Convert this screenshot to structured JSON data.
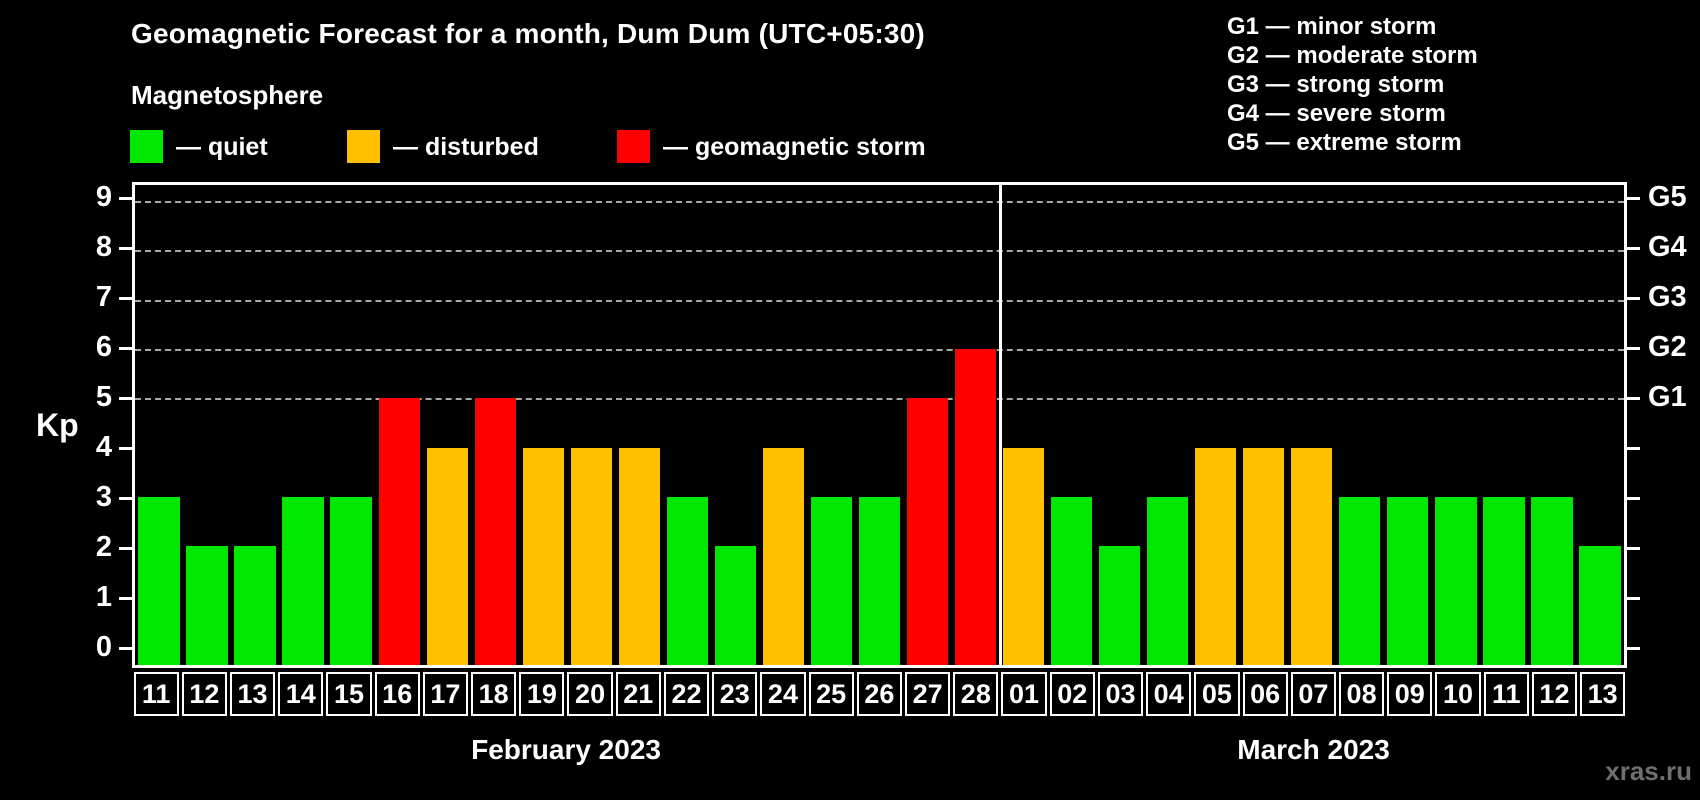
{
  "title": "Geomagnetic Forecast for a month, Dum Dum (UTC+05:30)",
  "subtitle": "Magnetosphere",
  "legend": {
    "items": [
      {
        "key": "quiet",
        "label": "— quiet"
      },
      {
        "key": "disturbed",
        "label": "— disturbed"
      },
      {
        "key": "storm",
        "label": "— geomagnetic storm"
      }
    ]
  },
  "storm_legend": {
    "items": [
      "G1 — minor storm",
      "G2 — moderate storm",
      "G3 — strong storm",
      "G4 — severe storm",
      "G5 — extreme storm"
    ]
  },
  "colors": {
    "quiet": "#00e800",
    "disturbed": "#ffc000",
    "storm": "#ff0000",
    "grid": "#a9a9a9",
    "axis": "#ffffff",
    "background": "#000000",
    "watermark": "#6f6f6f"
  },
  "watermark": "xras.ru",
  "chart_data": {
    "type": "bar",
    "title": "Geomagnetic Forecast for a month, Dum Dum (UTC+05:30)",
    "ylabel": "Kp",
    "ylim": [
      0,
      9
    ],
    "grid": "dashed horizontal at Kp 5-9 only",
    "legend_position": "top",
    "y_ticks": [
      0,
      1,
      2,
      3,
      4,
      5,
      6,
      7,
      8,
      9
    ],
    "right_axis_labels": [
      {
        "label": "G1",
        "value": 5
      },
      {
        "label": "G2",
        "value": 6
      },
      {
        "label": "G3",
        "value": 7
      },
      {
        "label": "G4",
        "value": 8
      },
      {
        "label": "G5",
        "value": 9
      }
    ],
    "months": [
      {
        "label": "February 2023",
        "days": 18
      },
      {
        "label": "March 2023",
        "days": 13
      }
    ],
    "bars": [
      {
        "month": "February 2023",
        "day": "11",
        "kp": 3,
        "status": "quiet"
      },
      {
        "month": "February 2023",
        "day": "12",
        "kp": 2,
        "status": "quiet"
      },
      {
        "month": "February 2023",
        "day": "13",
        "kp": 2,
        "status": "quiet"
      },
      {
        "month": "February 2023",
        "day": "14",
        "kp": 3,
        "status": "quiet"
      },
      {
        "month": "February 2023",
        "day": "15",
        "kp": 3,
        "status": "quiet"
      },
      {
        "month": "February 2023",
        "day": "16",
        "kp": 5,
        "status": "storm"
      },
      {
        "month": "February 2023",
        "day": "17",
        "kp": 4,
        "status": "disturbed"
      },
      {
        "month": "February 2023",
        "day": "18",
        "kp": 5,
        "status": "storm"
      },
      {
        "month": "February 2023",
        "day": "19",
        "kp": 4,
        "status": "disturbed"
      },
      {
        "month": "February 2023",
        "day": "20",
        "kp": 4,
        "status": "disturbed"
      },
      {
        "month": "February 2023",
        "day": "21",
        "kp": 4,
        "status": "disturbed"
      },
      {
        "month": "February 2023",
        "day": "22",
        "kp": 3,
        "status": "quiet"
      },
      {
        "month": "February 2023",
        "day": "23",
        "kp": 2,
        "status": "quiet"
      },
      {
        "month": "February 2023",
        "day": "24",
        "kp": 4,
        "status": "disturbed"
      },
      {
        "month": "February 2023",
        "day": "25",
        "kp": 3,
        "status": "quiet"
      },
      {
        "month": "February 2023",
        "day": "26",
        "kp": 3,
        "status": "quiet"
      },
      {
        "month": "February 2023",
        "day": "27",
        "kp": 5,
        "status": "storm"
      },
      {
        "month": "February 2023",
        "day": "28",
        "kp": 6,
        "status": "storm"
      },
      {
        "month": "March 2023",
        "day": "01",
        "kp": 4,
        "status": "disturbed"
      },
      {
        "month": "March 2023",
        "day": "02",
        "kp": 3,
        "status": "quiet"
      },
      {
        "month": "March 2023",
        "day": "03",
        "kp": 2,
        "status": "quiet"
      },
      {
        "month": "March 2023",
        "day": "04",
        "kp": 3,
        "status": "quiet"
      },
      {
        "month": "March 2023",
        "day": "05",
        "kp": 4,
        "status": "disturbed"
      },
      {
        "month": "March 2023",
        "day": "06",
        "kp": 4,
        "status": "disturbed"
      },
      {
        "month": "March 2023",
        "day": "07",
        "kp": 4,
        "status": "disturbed"
      },
      {
        "month": "March 2023",
        "day": "08",
        "kp": 3,
        "status": "quiet"
      },
      {
        "month": "March 2023",
        "day": "09",
        "kp": 3,
        "status": "quiet"
      },
      {
        "month": "March 2023",
        "day": "10",
        "kp": 3,
        "status": "quiet"
      },
      {
        "month": "March 2023",
        "day": "11",
        "kp": 3,
        "status": "quiet"
      },
      {
        "month": "March 2023",
        "day": "12",
        "kp": 3,
        "status": "quiet"
      },
      {
        "month": "March 2023",
        "day": "13",
        "kp": 2,
        "status": "quiet"
      }
    ]
  }
}
